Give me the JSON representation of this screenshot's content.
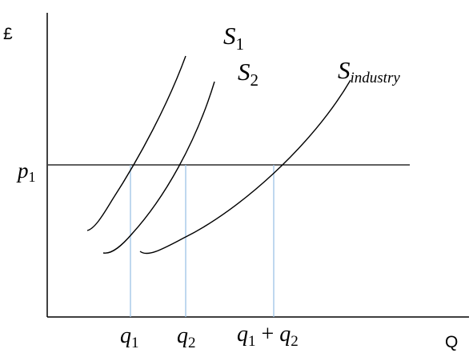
{
  "axes": {
    "y_label": "£",
    "x_label": "Q"
  },
  "price": {
    "symbol": "p",
    "subscript": "1"
  },
  "curves": {
    "s1": {
      "symbol": "S",
      "subscript": "1"
    },
    "s2": {
      "symbol": "S",
      "subscript": "2"
    },
    "s_industry": {
      "symbol": "S",
      "subscript": "industry"
    }
  },
  "quantities": {
    "q1": {
      "symbol": "q",
      "subscript": "1"
    },
    "q2": {
      "symbol": "q",
      "subscript": "2"
    },
    "sum": {
      "a_symbol": "q",
      "a_subscript": "1",
      "operator": " + ",
      "b_symbol": "q",
      "b_subscript": "2"
    }
  },
  "colors": {
    "axis": "#000000",
    "curve": "#000000",
    "price_line": "#000000",
    "guide_line": "#9dc3e6"
  }
}
